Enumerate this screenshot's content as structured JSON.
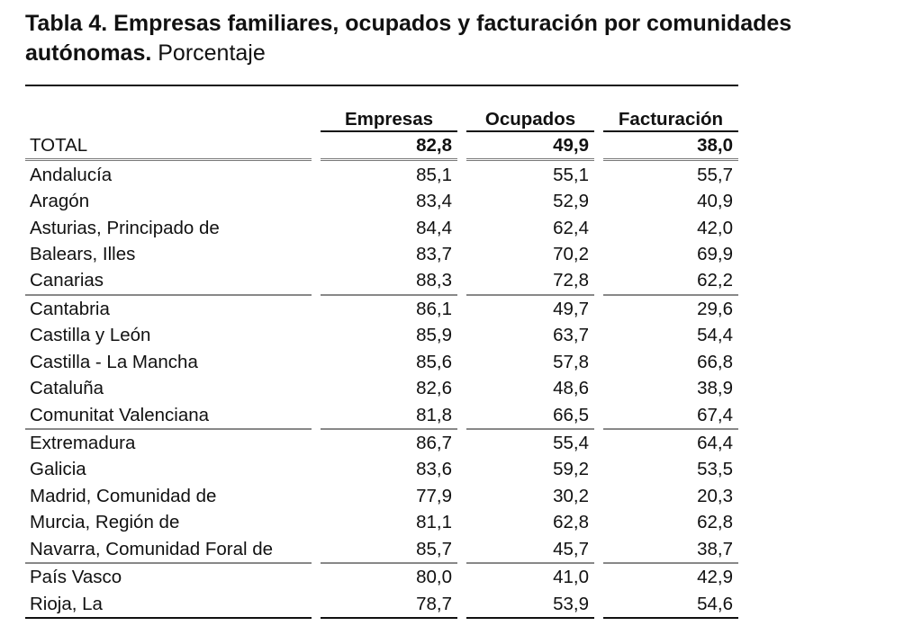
{
  "title": {
    "bold": "Tabla 4. Empresas familiares, ocupados y facturación por comunidades autónomas.",
    "light": "Porcentaje"
  },
  "columns": [
    "Empresas",
    "Ocupados",
    "Facturación"
  ],
  "total": {
    "name": "TOTAL",
    "values": [
      "82,8",
      "49,9",
      "38,0"
    ]
  },
  "rows": [
    {
      "name": "Andalucía",
      "values": [
        "85,1",
        "55,1",
        "55,7"
      ]
    },
    {
      "name": "Aragón",
      "values": [
        "83,4",
        "52,9",
        "40,9"
      ]
    },
    {
      "name": "Asturias, Principado de",
      "values": [
        "84,4",
        "62,4",
        "42,0"
      ]
    },
    {
      "name": "Balears, Illes",
      "values": [
        "83,7",
        "70,2",
        "69,9"
      ]
    },
    {
      "name": "Canarias",
      "values": [
        "88,3",
        "72,8",
        "62,2"
      ]
    },
    {
      "name": "Cantabria",
      "values": [
        "86,1",
        "49,7",
        "29,6"
      ]
    },
    {
      "name": "Castilla y León",
      "values": [
        "85,9",
        "63,7",
        "54,4"
      ]
    },
    {
      "name": "Castilla - La Mancha",
      "values": [
        "85,6",
        "57,8",
        "66,8"
      ]
    },
    {
      "name": "Cataluña",
      "values": [
        "82,6",
        "48,6",
        "38,9"
      ]
    },
    {
      "name": "Comunitat Valenciana",
      "values": [
        "81,8",
        "66,5",
        "67,4"
      ]
    },
    {
      "name": "Extremadura",
      "values": [
        "86,7",
        "55,4",
        "64,4"
      ]
    },
    {
      "name": "Galicia",
      "values": [
        "83,6",
        "59,2",
        "53,5"
      ]
    },
    {
      "name": "Madrid, Comunidad de",
      "values": [
        "77,9",
        "30,2",
        "20,3"
      ]
    },
    {
      "name": "Murcia, Región de",
      "values": [
        "81,1",
        "62,8",
        "62,8"
      ]
    },
    {
      "name": "Navarra, Comunidad Foral de",
      "values": [
        "85,7",
        "45,7",
        "38,7"
      ]
    },
    {
      "name": "País Vasco",
      "values": [
        "80,0",
        "41,0",
        "42,9"
      ]
    },
    {
      "name": "Rioja, La",
      "values": [
        "78,7",
        "53,9",
        "54,6"
      ]
    }
  ]
}
